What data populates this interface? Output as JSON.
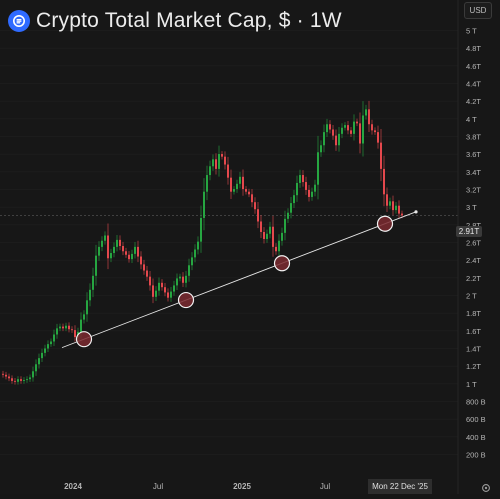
{
  "header": {
    "title": "Crypto Total Market Cap, $ · 1W",
    "logo_icon": "coin-stack-icon",
    "currency_button": "USD"
  },
  "price_axis": {
    "current_label": "2.91T",
    "labels": [
      "5 T",
      "4.8T",
      "4.6T",
      "4.4T",
      "4.2T",
      "4 T",
      "3.8T",
      "3.6T",
      "3.4T",
      "3.2T",
      "3 T",
      "2.8T",
      "2.6T",
      "2.4T",
      "2.2T",
      "2 T",
      "1.8T",
      "1.6T",
      "1.4T",
      "1.2T",
      "1 T",
      "800 B",
      "600 B",
      "400 B",
      "200 B"
    ]
  },
  "time_axis": {
    "labels": [
      "2024",
      "Jul",
      "2025",
      "Jul"
    ],
    "crosshair_date": "Mon 22 Dec '25",
    "settings_icon": "gear-icon"
  },
  "colors": {
    "up": "#26a641",
    "down": "#e5484d",
    "background": "#171717",
    "grid": "#222222",
    "trendline": "#e6e6e6",
    "marker_fill": "#7b2a30"
  },
  "chart_data": {
    "type": "candlestick",
    "title": "Crypto Total Market Cap, $ · 1W",
    "timeframe": "1W",
    "ylim": [
      0.18,
      5.02
    ],
    "unit": "T",
    "current_value": 2.91,
    "swing_low_markers": [
      1.45,
      1.9,
      2.35,
      2.88
    ],
    "trendline": {
      "start": 1.4,
      "end": 2.95
    },
    "x_tick_labels": [
      "2024",
      "Jul",
      "2025",
      "Jul"
    ],
    "closes": [
      1.09,
      1.07,
      1.05,
      1.02,
      1.01,
      1.04,
      1.02,
      1.03,
      1.04,
      1.06,
      1.13,
      1.21,
      1.28,
      1.34,
      1.39,
      1.44,
      1.47,
      1.55,
      1.62,
      1.64,
      1.62,
      1.65,
      1.61,
      1.6,
      1.52,
      1.58,
      1.72,
      1.78,
      1.94,
      2.06,
      2.22,
      2.45,
      2.55,
      2.62,
      2.68,
      2.42,
      2.48,
      2.55,
      2.63,
      2.56,
      2.5,
      2.46,
      2.41,
      2.47,
      2.55,
      2.44,
      2.35,
      2.28,
      2.21,
      2.11,
      1.98,
      2.05,
      2.14,
      2.09,
      2.03,
      1.97,
      2.04,
      2.11,
      2.19,
      2.21,
      2.14,
      2.22,
      2.34,
      2.43,
      2.52,
      2.61,
      2.88,
      3.18,
      3.37,
      3.47,
      3.55,
      3.44,
      3.61,
      3.58,
      3.49,
      3.34,
      3.18,
      3.21,
      3.27,
      3.35,
      3.21,
      3.18,
      3.15,
      3.06,
      2.98,
      2.84,
      2.72,
      2.64,
      2.7,
      2.78,
      2.55,
      2.5,
      2.62,
      2.71,
      2.87,
      2.94,
      3.05,
      3.14,
      3.28,
      3.37,
      3.29,
      3.2,
      3.12,
      3.18,
      3.26,
      3.63,
      3.71,
      3.86,
      3.95,
      3.89,
      3.82,
      3.71,
      3.84,
      3.91,
      3.94,
      3.88,
      3.84,
      3.98,
      3.96,
      3.73,
      4.05,
      4.12,
      3.95,
      3.88,
      3.86,
      3.74,
      3.44,
      3.15,
      3.02,
      3.07,
      2.97,
      3.02,
      2.93,
      2.91
    ]
  }
}
